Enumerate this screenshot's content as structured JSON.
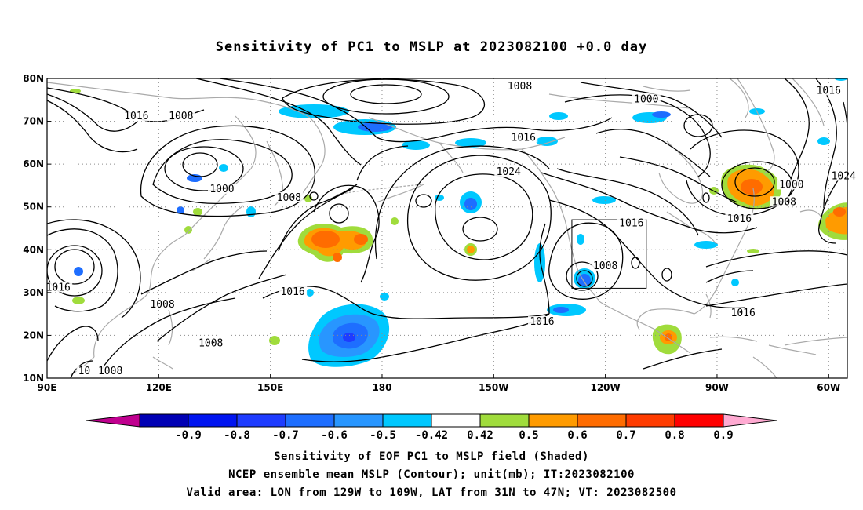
{
  "title": "Sensitivity of PC1 to MSLP at 2023082100 +0.0 day",
  "captions": [
    "Sensitivity of EOF PC1 to MSLP field (Shaded)",
    "NCEP ensemble mean MSLP (Contour); unit(mb); IT:2023082100",
    "Valid area: LON from 129W to 109W, LAT from 31N to 47N; VT: 2023082500"
  ],
  "map": {
    "lon_range": [
      90,
      305
    ],
    "lat_range": [
      10,
      80
    ],
    "lon_ticks": [
      {
        "lon": 90,
        "label": "90E"
      },
      {
        "lon": 120,
        "label": "120E"
      },
      {
        "lon": 150,
        "label": "150E"
      },
      {
        "lon": 180,
        "label": "180"
      },
      {
        "lon": 210,
        "label": "150W"
      },
      {
        "lon": 240,
        "label": "120W"
      },
      {
        "lon": 270,
        "label": "90W"
      },
      {
        "lon": 300,
        "label": "60W"
      }
    ],
    "lat_ticks": [
      {
        "lat": 10,
        "label": "10N"
      },
      {
        "lat": 20,
        "label": "20N"
      },
      {
        "lat": 30,
        "label": "30N"
      },
      {
        "lat": 40,
        "label": "40N"
      },
      {
        "lat": 50,
        "label": "50N"
      },
      {
        "lat": 60,
        "label": "60N"
      },
      {
        "lat": 70,
        "label": "70N"
      },
      {
        "lat": 80,
        "label": "80N"
      }
    ],
    "grid": "dotted",
    "valid_area": {
      "lon_min": 231,
      "lon_max": 251,
      "lat_min": 31,
      "lat_max": 47
    },
    "contour_labels": [
      {
        "text": "1016",
        "lon": 114,
        "lat": 71
      },
      {
        "text": "1008",
        "lon": 126,
        "lat": 71
      },
      {
        "text": "1000",
        "lon": 137,
        "lat": 54
      },
      {
        "text": "1008",
        "lon": 155,
        "lat": 52
      },
      {
        "text": "1008",
        "lon": 217,
        "lat": 78
      },
      {
        "text": "1016",
        "lon": 218,
        "lat": 66
      },
      {
        "text": "1024",
        "lon": 214,
        "lat": 58
      },
      {
        "text": "1000",
        "lon": 251,
        "lat": 75
      },
      {
        "text": "1016",
        "lon": 300,
        "lat": 77
      },
      {
        "text": "1024",
        "lon": 304,
        "lat": 57
      },
      {
        "text": "1000",
        "lon": 290,
        "lat": 55
      },
      {
        "text": "1008",
        "lon": 288,
        "lat": 51
      },
      {
        "text": "1016",
        "lon": 276,
        "lat": 47
      },
      {
        "text": "1016",
        "lon": 247,
        "lat": 46
      },
      {
        "text": "1008",
        "lon": 240,
        "lat": 36
      },
      {
        "text": "1016",
        "lon": 93,
        "lat": 31
      },
      {
        "text": "1008",
        "lon": 121,
        "lat": 27
      },
      {
        "text": "1008",
        "lon": 134,
        "lat": 18
      },
      {
        "text": "1016",
        "lon": 156,
        "lat": 30
      },
      {
        "text": "1016",
        "lon": 223,
        "lat": 23
      },
      {
        "text": "1016",
        "lon": 277,
        "lat": 25
      },
      {
        "text": "10",
        "lon": 100,
        "lat": 11.5
      },
      {
        "text": "1008",
        "lon": 107,
        "lat": 11.5
      }
    ]
  },
  "colorbar": {
    "colors": [
      "#c0008f",
      "#0000b4",
      "#0014f0",
      "#1e3cff",
      "#1e6eff",
      "#2896ff",
      "#00c8ff",
      "#ffffff",
      "#a0dc3c",
      "#ff9b00",
      "#ff6c00",
      "#ff3c00",
      "#ff0000",
      "#ffaad2"
    ],
    "labels": [
      "-0.9",
      "-0.8",
      "-0.7",
      "-0.6",
      "-0.5",
      "-0.42",
      "0.42",
      "0.5",
      "0.6",
      "0.7",
      "0.8",
      "0.9"
    ]
  },
  "colors": {
    "contour": "#000000",
    "coastline": "#a9a9a9",
    "grid": "#8c8c8c"
  }
}
